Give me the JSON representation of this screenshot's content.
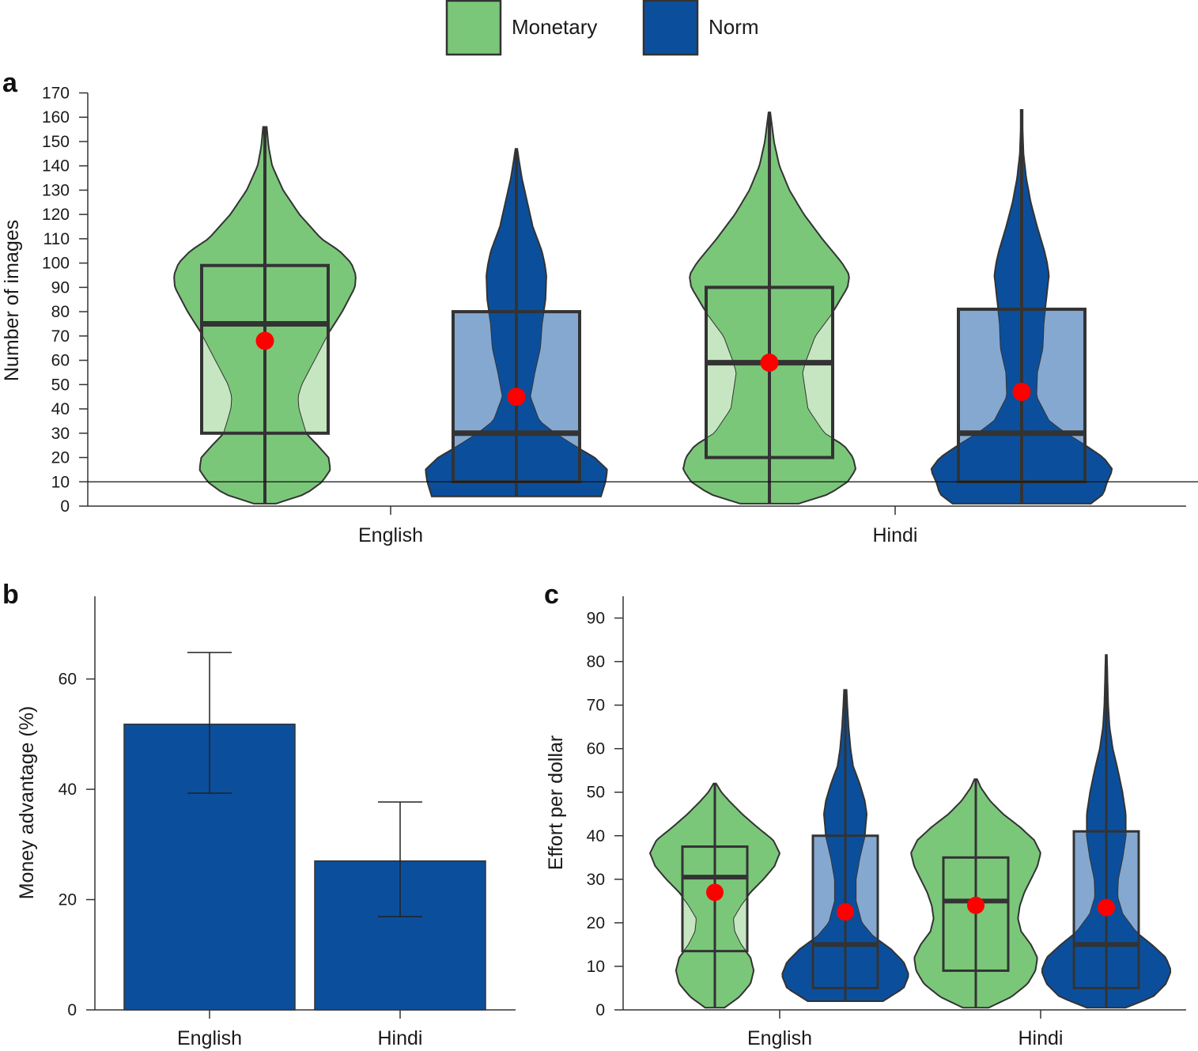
{
  "colors": {
    "monetary": "#7bc77a",
    "monetary_light": "#c6e6c2",
    "norm": "#0b4f9c",
    "norm_light": "#85a8d0",
    "outline": "#333333",
    "mean_dot": "#ff0000"
  },
  "legend": {
    "items": [
      {
        "label": "Monetary",
        "color": "#7bc77a"
      },
      {
        "label": "Norm",
        "color": "#0b4f9c"
      }
    ]
  },
  "chart_data": [
    {
      "panel": "a",
      "type": "violin",
      "ylabel": "Number of images",
      "ylim": [
        0,
        170
      ],
      "yticks": [
        0,
        10,
        20,
        30,
        40,
        50,
        60,
        70,
        80,
        90,
        100,
        110,
        120,
        130,
        140,
        150,
        160,
        170
      ],
      "reference_line": 10,
      "categories": [
        "English",
        "Hindi"
      ],
      "series": [
        {
          "name": "Monetary",
          "category": "English",
          "min": 1,
          "max": 156,
          "q1": 30,
          "median": 75,
          "q3": 99,
          "mean": 68,
          "density": [
            [
              1,
              0.12
            ],
            [
              5,
              0.45
            ],
            [
              10,
              0.63
            ],
            [
              15,
              0.72
            ],
            [
              20,
              0.7
            ],
            [
              25,
              0.58
            ],
            [
              30,
              0.45
            ],
            [
              40,
              0.37
            ],
            [
              45,
              0.36
            ],
            [
              50,
              0.4
            ],
            [
              60,
              0.54
            ],
            [
              70,
              0.68
            ],
            [
              80,
              0.85
            ],
            [
              90,
              0.99
            ],
            [
              95,
              1.0
            ],
            [
              100,
              0.95
            ],
            [
              105,
              0.82
            ],
            [
              110,
              0.62
            ],
            [
              120,
              0.38
            ],
            [
              130,
              0.2
            ],
            [
              140,
              0.08
            ],
            [
              148,
              0.04
            ],
            [
              156,
              0.02
            ]
          ]
        },
        {
          "name": "Norm",
          "category": "English",
          "min": 4,
          "max": 147,
          "q1": 10,
          "median": 30,
          "q3": 80,
          "mean": 45,
          "density": [
            [
              4,
              0.93
            ],
            [
              10,
              0.98
            ],
            [
              15,
              1.0
            ],
            [
              20,
              0.86
            ],
            [
              25,
              0.63
            ],
            [
              30,
              0.42
            ],
            [
              35,
              0.25
            ],
            [
              45,
              0.15
            ],
            [
              55,
              0.2
            ],
            [
              65,
              0.26
            ],
            [
              75,
              0.28
            ],
            [
              85,
              0.32
            ],
            [
              95,
              0.33
            ],
            [
              100,
              0.31
            ],
            [
              105,
              0.28
            ],
            [
              115,
              0.18
            ],
            [
              125,
              0.12
            ],
            [
              135,
              0.06
            ],
            [
              142,
              0.03
            ],
            [
              147,
              0.01
            ]
          ]
        },
        {
          "name": "Monetary",
          "category": "Hindi",
          "min": 1,
          "max": 162,
          "q1": 20,
          "median": 59,
          "q3": 90,
          "mean": 59,
          "density": [
            [
              1,
              0.32
            ],
            [
              5,
              0.66
            ],
            [
              10,
              0.86
            ],
            [
              15,
              0.95
            ],
            [
              20,
              0.92
            ],
            [
              25,
              0.82
            ],
            [
              30,
              0.6
            ],
            [
              40,
              0.42
            ],
            [
              50,
              0.38
            ],
            [
              55,
              0.36
            ],
            [
              60,
              0.4
            ],
            [
              70,
              0.5
            ],
            [
              80,
              0.7
            ],
            [
              90,
              0.86
            ],
            [
              95,
              0.88
            ],
            [
              100,
              0.8
            ],
            [
              110,
              0.58
            ],
            [
              120,
              0.38
            ],
            [
              130,
              0.22
            ],
            [
              140,
              0.11
            ],
            [
              150,
              0.05
            ],
            [
              162,
              0.01
            ]
          ]
        },
        {
          "name": "Norm",
          "category": "Hindi",
          "min": 1,
          "max": 163,
          "q1": 10,
          "median": 30,
          "q3": 81,
          "mean": 47,
          "density": [
            [
              1,
              0.76
            ],
            [
              5,
              0.9
            ],
            [
              10,
              0.94
            ],
            [
              15,
              1.0
            ],
            [
              20,
              0.9
            ],
            [
              25,
              0.7
            ],
            [
              30,
              0.48
            ],
            [
              35,
              0.3
            ],
            [
              45,
              0.16
            ],
            [
              55,
              0.17
            ],
            [
              65,
              0.23
            ],
            [
              75,
              0.24
            ],
            [
              85,
              0.27
            ],
            [
              95,
              0.3
            ],
            [
              100,
              0.28
            ],
            [
              105,
              0.25
            ],
            [
              115,
              0.17
            ],
            [
              125,
              0.1
            ],
            [
              135,
              0.05
            ],
            [
              145,
              0.02
            ],
            [
              155,
              0.01
            ],
            [
              163,
              0.01
            ]
          ]
        }
      ]
    },
    {
      "panel": "b",
      "type": "bar",
      "ylabel": "Money advantage (%)",
      "ylim": [
        0,
        75
      ],
      "yticks": [
        0,
        20,
        40,
        60
      ],
      "categories": [
        "English",
        "Hindi"
      ],
      "values": [
        51.8,
        27.0
      ],
      "error_low": [
        39.3,
        16.9
      ],
      "error_high": [
        64.8,
        37.7
      ],
      "color": "#0b4f9c"
    },
    {
      "panel": "c",
      "type": "violin",
      "ylabel": "Effort per dollar",
      "ylim": [
        0,
        95
      ],
      "yticks": [
        0,
        10,
        20,
        30,
        40,
        50,
        60,
        70,
        80,
        90
      ],
      "categories": [
        "English",
        "Hindi"
      ],
      "series": [
        {
          "name": "Monetary",
          "category": "English",
          "min": 0.5,
          "max": 52,
          "q1": 13.5,
          "median": 30.5,
          "q3": 37.5,
          "mean": 27,
          "density": [
            [
              0.5,
              0.15
            ],
            [
              3,
              0.38
            ],
            [
              6,
              0.55
            ],
            [
              9,
              0.6
            ],
            [
              12,
              0.55
            ],
            [
              15,
              0.4
            ],
            [
              18,
              0.3
            ],
            [
              21,
              0.28
            ],
            [
              24,
              0.4
            ],
            [
              27,
              0.55
            ],
            [
              30,
              0.75
            ],
            [
              33,
              0.92
            ],
            [
              36,
              1.0
            ],
            [
              39,
              0.9
            ],
            [
              42,
              0.65
            ],
            [
              45,
              0.42
            ],
            [
              48,
              0.22
            ],
            [
              50,
              0.1
            ],
            [
              52,
              0.02
            ]
          ]
        },
        {
          "name": "Norm",
          "category": "English",
          "min": 2,
          "max": 73.5,
          "q1": 5,
          "median": 15,
          "q3": 40,
          "mean": 22.5,
          "density": [
            [
              2,
              0.58
            ],
            [
              5,
              0.9
            ],
            [
              8,
              0.98
            ],
            [
              11,
              0.9
            ],
            [
              14,
              0.7
            ],
            [
              17,
              0.42
            ],
            [
              20,
              0.25
            ],
            [
              25,
              0.16
            ],
            [
              30,
              0.16
            ],
            [
              35,
              0.22
            ],
            [
              40,
              0.3
            ],
            [
              45,
              0.33
            ],
            [
              48,
              0.3
            ],
            [
              52,
              0.22
            ],
            [
              56,
              0.12
            ],
            [
              60,
              0.08
            ],
            [
              65,
              0.05
            ],
            [
              70,
              0.03
            ],
            [
              73.5,
              0.02
            ]
          ]
        },
        {
          "name": "Monetary",
          "category": "Hindi",
          "min": 0.5,
          "max": 53,
          "q1": 9,
          "median": 25,
          "q3": 35,
          "mean": 24,
          "density": [
            [
              0.5,
              0.2
            ],
            [
              3,
              0.55
            ],
            [
              6,
              0.8
            ],
            [
              9,
              0.92
            ],
            [
              12,
              0.95
            ],
            [
              15,
              0.85
            ],
            [
              18,
              0.7
            ],
            [
              21,
              0.65
            ],
            [
              24,
              0.68
            ],
            [
              27,
              0.75
            ],
            [
              30,
              0.85
            ],
            [
              33,
              0.95
            ],
            [
              36,
              1.0
            ],
            [
              39,
              0.9
            ],
            [
              42,
              0.68
            ],
            [
              45,
              0.42
            ],
            [
              48,
              0.22
            ],
            [
              51,
              0.08
            ],
            [
              53,
              0.02
            ]
          ]
        },
        {
          "name": "Norm",
          "category": "Hindi",
          "min": 0.5,
          "max": 81.5,
          "q1": 5,
          "median": 15,
          "q3": 41,
          "mean": 23.5,
          "density": [
            [
              0.5,
              0.3
            ],
            [
              3,
              0.72
            ],
            [
              6,
              0.92
            ],
            [
              9,
              1.0
            ],
            [
              12,
              0.92
            ],
            [
              15,
              0.7
            ],
            [
              18,
              0.45
            ],
            [
              22,
              0.25
            ],
            [
              26,
              0.17
            ],
            [
              30,
              0.18
            ],
            [
              35,
              0.25
            ],
            [
              40,
              0.3
            ],
            [
              45,
              0.3
            ],
            [
              50,
              0.25
            ],
            [
              55,
              0.18
            ],
            [
              60,
              0.1
            ],
            [
              65,
              0.05
            ],
            [
              70,
              0.03
            ],
            [
              75,
              0.02
            ],
            [
              81.5,
              0.01
            ]
          ]
        }
      ]
    }
  ]
}
